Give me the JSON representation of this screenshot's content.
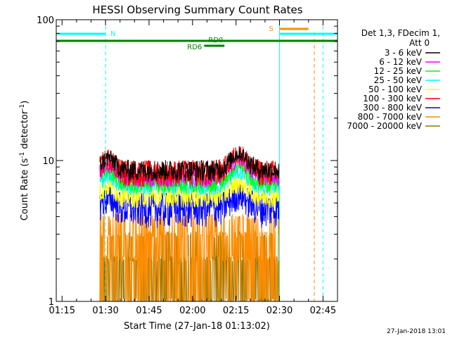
{
  "chart_data": {
    "type": "line",
    "title": "HESSI Observing Summary Count Rates",
    "xlabel": "Start Time (27-Jan-18 01:13:02)",
    "ylabel_main": "Count Rate (s",
    "ylabel_sup1": "-1",
    "ylabel_mid": " detector",
    "ylabel_sup2": "-1",
    "ylabel_end": ")",
    "y_scale": "log",
    "ylim": [
      1,
      100
    ],
    "xlim_minutes_after_0113": [
      0,
      97
    ],
    "x_ticks": [
      {
        "label": "01:15",
        "minute": 2
      },
      {
        "label": "01:30",
        "minute": 17
      },
      {
        "label": "01:45",
        "minute": 32
      },
      {
        "label": "02:00",
        "minute": 47
      },
      {
        "label": "02:15",
        "minute": 62
      },
      {
        "label": "02:30",
        "minute": 77
      },
      {
        "label": "02:45",
        "minute": 92
      }
    ],
    "y_ticks": [
      {
        "label": "1",
        "value": 1
      },
      {
        "label": "10",
        "value": 10
      },
      {
        "label": "100",
        "value": 100
      }
    ],
    "legend_header": [
      "Det 1,3, FDecim 1,",
      "Att 0"
    ],
    "legend_placement": "right",
    "series": [
      {
        "name": "3 - 6 keV",
        "color": "#000000",
        "base": 8.6,
        "noise": 1.5,
        "bump": 1.25
      },
      {
        "name": "6 - 12 keV",
        "color": "#ff00ff",
        "base": 7.6,
        "noise": 1.2,
        "bump": 1.1
      },
      {
        "name": "12 - 25 keV",
        "color": "#00ff00",
        "base": 7.0,
        "noise": 1.1,
        "bump": 1.0
      },
      {
        "name": "25 - 50 keV",
        "color": "#00ffff",
        "base": 6.6,
        "noise": 1.0,
        "bump": 0.8
      },
      {
        "name": "50 - 100 keV",
        "color": "#ffff00",
        "base": 5.6,
        "noise": 1.0,
        "bump": 0.6
      },
      {
        "name": "100 - 300 keV",
        "color": "#ff0000",
        "base": 8.3,
        "noise": 1.8,
        "bump": 1.4
      },
      {
        "name": "300 - 800 keV",
        "color": "#0000ff",
        "base": 4.6,
        "noise": 1.3,
        "bump": 0.5
      },
      {
        "name": "800 - 7000 keV",
        "color": "#ff8c00",
        "base": 2.4,
        "noise": 1.3,
        "bump": 0.2
      },
      {
        "name": "7000 - 20000 keV",
        "color": "#8b7500",
        "base": 1.9,
        "noise": 0.9,
        "bump": 0.1
      }
    ],
    "data_interval_minutes": [
      15,
      77
    ],
    "flags": {
      "n_label": "N",
      "s_label": "S",
      "rd0_label": "RD0",
      "rd6_label": "RD6",
      "night_color": "#00ffff",
      "saa_color": "#ff8c00",
      "decim_color": "#008000",
      "night_bars_minutes": [
        [
          0,
          17
        ],
        [
          77,
          97
        ]
      ],
      "saa_bar_minutes": [
        77,
        87
      ],
      "decim_bar_minutes": [
        0,
        97
      ],
      "rd6_bar_minutes": [
        51,
        58
      ],
      "night_lines_minutes": [
        0,
        17,
        77,
        92
      ],
      "saa_line_minutes": [
        89
      ]
    },
    "timestamp": "27-Jan-2018 13:01"
  }
}
